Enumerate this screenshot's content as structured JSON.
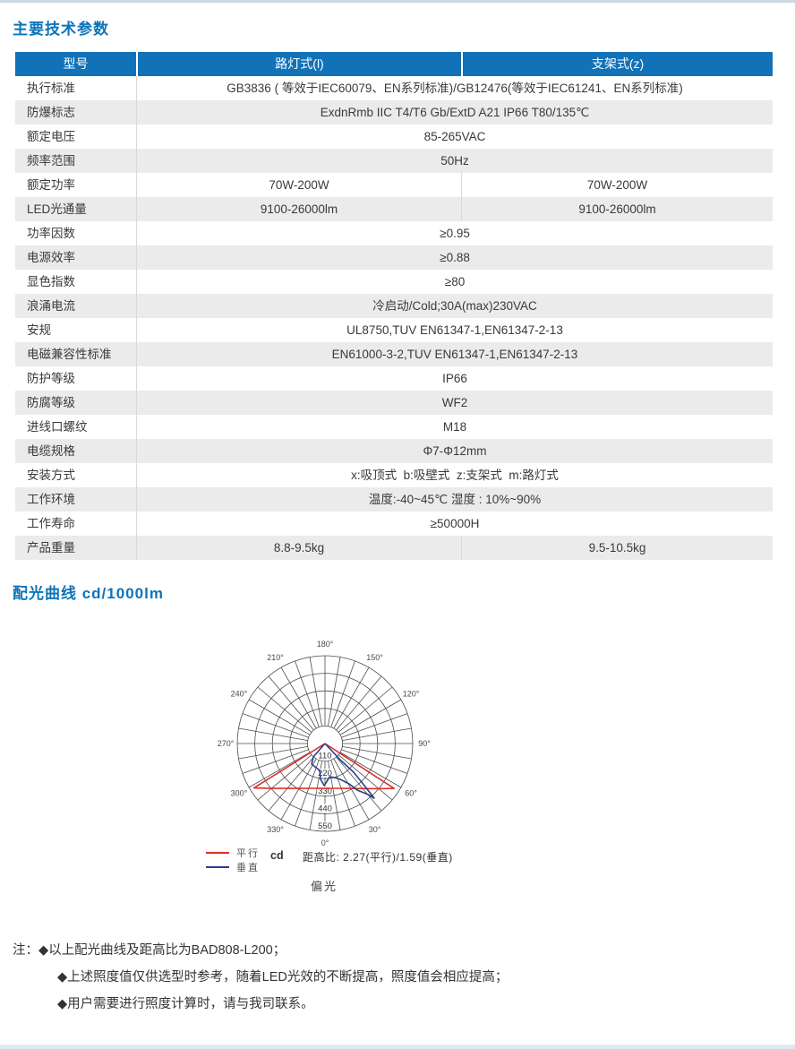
{
  "page": {
    "bg": "#ffffff",
    "accent_blue": "#0d73b9",
    "section1_title": "主要技术参数",
    "section2_title": "配光曲线 cd/1000lm"
  },
  "table": {
    "header_bg": "#1172b8",
    "alt_row_bg": "#ebebeb",
    "headers": [
      "型号",
      "路灯式(l)",
      "支架式(z)"
    ],
    "rows": [
      {
        "label": "执行标准",
        "values": [
          "GB3836 ( 等效于IEC60079、EN系列标准)/GB12476(等效于IEC61241、EN系列标准)"
        ]
      },
      {
        "label": "防爆标志",
        "values": [
          "ExdnRmb IIC T4/T6 Gb/ExtD A21 IP66 T80/135℃"
        ]
      },
      {
        "label": "额定电压",
        "values": [
          "85-265VAC"
        ]
      },
      {
        "label": "频率范围",
        "values": [
          "50Hz"
        ]
      },
      {
        "label": "额定功率",
        "values": [
          "70W-200W",
          "70W-200W"
        ]
      },
      {
        "label": "LED光通量",
        "values": [
          "9100-26000lm",
          "9100-26000lm"
        ]
      },
      {
        "label": "功率因数",
        "values": [
          "≥0.95"
        ]
      },
      {
        "label": "电源效率",
        "values": [
          "≥0.88"
        ]
      },
      {
        "label": "显色指数",
        "values": [
          "≥80"
        ]
      },
      {
        "label": "浪涌电流",
        "values": [
          "冷启动/Cold;30A(max)230VAC"
        ]
      },
      {
        "label": "安规",
        "values": [
          "UL8750,TUV EN61347-1,EN61347-2-13"
        ]
      },
      {
        "label": "电磁兼容性标准",
        "values": [
          "EN61000-3-2,TUV EN61347-1,EN61347-2-13"
        ]
      },
      {
        "label": "防护等级",
        "values": [
          "IP66"
        ]
      },
      {
        "label": "防腐等级",
        "values": [
          "WF2"
        ]
      },
      {
        "label": "进线口螺纹",
        "values": [
          "M18"
        ]
      },
      {
        "label": "电缆规格",
        "values": [
          "Φ7-Φ12mm"
        ]
      },
      {
        "label": "安装方式",
        "values": [
          "x:吸顶式  b:吸壁式  z:支架式  m:路灯式"
        ]
      },
      {
        "label": "工作环境",
        "values": [
          "温度:-40~45℃ 湿度 : 10%~90%"
        ]
      },
      {
        "label": "工作寿命",
        "values": [
          "≥50000H"
        ]
      },
      {
        "label": "产品重量",
        "values": [
          "8.8-9.5kg",
          "9.5-10.5kg"
        ]
      }
    ]
  },
  "chart_data": {
    "type": "polar",
    "unit": "cd",
    "radial_ticks": [
      110,
      220,
      330,
      440,
      550
    ],
    "radial_max": 550,
    "angle_step_deg": 10,
    "angle_labels": [
      "0°",
      "30°",
      "60°",
      "90°",
      "120°",
      "150°",
      "180°",
      "210°",
      "240°",
      "270°",
      "300°",
      "330°"
    ],
    "series": [
      {
        "name": "平行",
        "color": "#d93025",
        "points": [
          [
            -58,
            0
          ],
          [
            -58,
            525
          ],
          [
            -50,
            437
          ],
          [
            -42,
            378
          ],
          [
            -34,
            339
          ],
          [
            -26,
            313
          ],
          [
            -18,
            295
          ],
          [
            -10,
            285
          ],
          [
            0,
            281
          ],
          [
            10,
            285
          ],
          [
            18,
            295
          ],
          [
            26,
            313
          ],
          [
            34,
            340
          ],
          [
            42,
            380
          ],
          [
            50,
            440
          ],
          [
            57,
            516
          ],
          [
            57,
            0
          ]
        ]
      },
      {
        "name": "垂直",
        "color": "#27408b",
        "points": [
          [
            -41,
            0
          ],
          [
            -41,
            111
          ],
          [
            -33,
            154
          ],
          [
            -11,
            172
          ],
          [
            -7,
            226
          ],
          [
            -1,
            264
          ],
          [
            8,
            210
          ],
          [
            17,
            224
          ],
          [
            23,
            244
          ],
          [
            31,
            295
          ],
          [
            35,
            358
          ],
          [
            40,
            415
          ],
          [
            42,
            461
          ],
          [
            43,
            370
          ],
          [
            45,
            254
          ],
          [
            43,
            139
          ],
          [
            43,
            0
          ]
        ]
      }
    ],
    "legend": [
      {
        "label": "平行",
        "color": "#d93025"
      },
      {
        "label": "垂直",
        "color": "#27408b"
      }
    ],
    "ratio_text": "距高比: 2.27(平行)/1.59(垂直)",
    "caption": "偏光"
  },
  "notes": {
    "prefix": "注：",
    "lines": [
      "◆以上配光曲线及距高比为BAD808-L200；",
      "◆上述照度值仅供选型时参考，随着LED光效的不断提高，照度值会相应提高；",
      "◆用户需要进行照度计算时，请与我司联系。"
    ]
  }
}
